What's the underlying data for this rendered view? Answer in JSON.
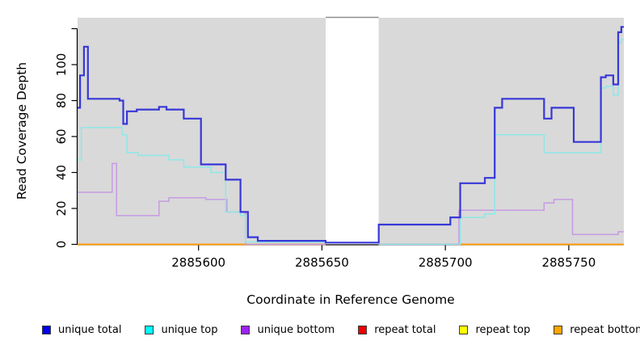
{
  "figure": {
    "xlabel": "Coordinate in Reference Genome",
    "ylabel": "Read Coverage Depth"
  },
  "legend": {
    "items": [
      {
        "label": "unique total",
        "color": "#0000ee"
      },
      {
        "label": "unique top",
        "color": "#00ffff"
      },
      {
        "label": "unique bottom",
        "color": "#a020f0"
      },
      {
        "label": "repeat total",
        "color": "#ee0000"
      },
      {
        "label": "repeat top",
        "color": "#ffff00"
      },
      {
        "label": "repeat bottom",
        "color": "#ffa500"
      }
    ]
  },
  "chart_data": {
    "type": "line",
    "step": true,
    "title": "",
    "xlabel": "Coordinate in Reference Genome",
    "ylabel": "Read Coverage Depth",
    "xlim": [
      2885551,
      2885772.3
    ],
    "ylim": [
      0,
      126
    ],
    "x_ticks": [
      2885600,
      2885650,
      2885700,
      2885750
    ],
    "x_tick_labels": [
      "2885600",
      "2885650",
      "2885700",
      "2885750"
    ],
    "y_ticks": [
      0,
      20,
      40,
      60,
      80,
      100,
      120
    ],
    "y_tick_labels": [
      "0",
      "20",
      "40",
      "60",
      "80",
      "100",
      ""
    ],
    "grid": false,
    "legend_position": "bottom",
    "plot_bg": "#d9d9d9",
    "no_data_gap": {
      "x": [
        2885651.5,
        2885673
      ],
      "top_line_color": "#8f8f8f"
    },
    "render_order": [
      "repeat top",
      "repeat total",
      "repeat bottom",
      "unique bottom",
      "unique top",
      "unique total"
    ],
    "series": [
      {
        "name": "unique total",
        "line_color": "#3737d8",
        "width": 2.2,
        "segments": [
          {
            "x": [
              2885551,
              2885552,
              2885553.6,
              2885555.2,
              2885568,
              2885569.5,
              2885571,
              2885575,
              2885584,
              2885587,
              2885594,
              2885601,
              2885611,
              2885617,
              2885620,
              2885624,
              2885651.5,
              2885673,
              2885702,
              2885706,
              2885716,
              2885720,
              2885723,
              2885740,
              2885743,
              2885752,
              2885763,
              2885765,
              2885768,
              2885770,
              2885771.3
            ],
            "y": [
              76,
              94,
              110,
              81,
              80,
              67,
              74,
              75,
              76.5,
              75,
              70,
              44.5,
              36,
              18,
              4,
              2,
              1,
              11,
              15,
              34,
              37,
              76,
              81,
              70,
              76,
              57,
              93,
              94,
              89,
              118,
              121
            ],
            "xend": 2885772.3
          }
        ]
      },
      {
        "name": "unique top",
        "line_color": "#8de8e8",
        "width": 1.5,
        "segments": [
          {
            "x": [
              2885551,
              2885552.5,
              2885569,
              2885571,
              2885575.5,
              2885588,
              2885594,
              2885605,
              2885611,
              2885617,
              2885619
            ],
            "y": [
              47,
              65,
              61,
              51,
              49.5,
              47,
              43,
              40,
              18,
              16,
              1.3
            ],
            "xend": 2885651.5
          },
          {
            "x": [
              2885673,
              2885706,
              2885716,
              2885720,
              2885740,
              2885763,
              2885765,
              2885768,
              2885770,
              2885771.3
            ],
            "y": [
              0,
              15,
              17,
              61,
              51,
              87,
              88,
              83,
              112,
              114
            ],
            "xend": 2885772.3
          }
        ]
      },
      {
        "name": "unique bottom",
        "line_color": "#c69ae3",
        "width": 1.5,
        "segments": [
          {
            "x": [
              2885551,
              2885565,
              2885566.8,
              2885584,
              2885588,
              2885603,
              2885611.5,
              2885619
            ],
            "y": [
              29,
              45,
              16,
              24,
              26,
              25,
              18,
              0
            ],
            "xend": 2885651.5
          },
          {
            "x": [
              2885673,
              2885705.5,
              2885740,
              2885744,
              2885751.5,
              2885770
            ],
            "y": [
              0,
              19,
              23,
              25,
              5.5,
              7
            ],
            "xend": 2885772.3
          }
        ]
      },
      {
        "name": "repeat total",
        "line_color": "#d0506e",
        "width": 1.7,
        "segments": [
          {
            "x": [
              2885551
            ],
            "y": [
              0
            ],
            "xend": 2885651.5
          },
          {
            "x": [
              2885673
            ],
            "y": [
              0
            ],
            "xend": 2885772.3
          }
        ]
      },
      {
        "name": "repeat top",
        "line_color": "#f5e626",
        "width": 1.5,
        "segments": [
          {
            "x": [
              2885551
            ],
            "y": [
              0
            ],
            "xend": 2885651.5
          },
          {
            "x": [
              2885705.5
            ],
            "y": [
              0
            ],
            "xend": 2885772.3
          }
        ]
      },
      {
        "name": "repeat bottom",
        "line_color": "#ff9d0e",
        "width": 2,
        "segments": [
          {
            "x": [
              2885551
            ],
            "y": [
              0
            ],
            "xend": 2885651.5
          },
          {
            "x": [
              2885705.5
            ],
            "y": [
              0
            ],
            "xend": 2885772.3
          }
        ]
      }
    ]
  }
}
